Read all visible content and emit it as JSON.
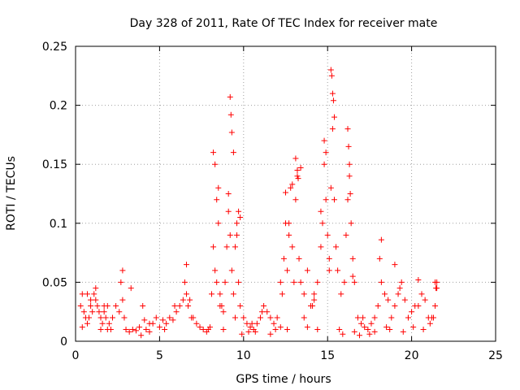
{
  "chart_data": {
    "type": "scatter",
    "title": "Day 328 of 2011, Rate Of TEC Index for receiver mate",
    "xlabel": "GPS time / hours",
    "ylabel": "ROTI / TECUs",
    "xlim": [
      0,
      25
    ],
    "ylim": [
      0,
      0.25
    ],
    "x_ticks": [
      "0",
      "5",
      "10",
      "15",
      "20",
      "25"
    ],
    "y_ticks": [
      "0",
      "0.05",
      "0.1",
      "0.15",
      "0.2",
      "0.25"
    ],
    "grid": true,
    "marker": "plus",
    "color": "#ff0000",
    "series": [
      {
        "x": [
          0.3,
          0.4,
          0.5,
          0.6,
          0.7,
          0.8,
          0.9,
          1.0,
          1.1,
          1.2,
          1.3,
          1.4,
          1.5,
          1.6,
          1.7,
          1.8,
          1.9,
          2.0,
          2.2,
          2.4,
          2.6,
          2.7,
          2.8,
          2.9,
          3.0,
          3.2,
          3.4,
          3.6,
          3.8,
          4.0,
          4.2,
          4.4,
          4.6,
          4.8,
          5.0,
          5.2,
          5.4,
          5.6,
          5.8,
          6.0,
          6.2,
          6.4,
          6.5,
          6.6,
          6.7,
          6.8,
          7.0,
          7.2,
          7.4,
          7.6,
          7.8,
          8.0,
          8.1,
          8.2,
          8.3,
          8.4,
          8.5,
          8.6,
          8.7,
          8.8,
          8.9,
          9.0,
          9.1,
          9.2,
          9.3,
          9.4,
          9.5,
          9.6,
          9.7,
          9.8,
          10.0,
          10.2,
          10.4,
          10.6,
          10.8,
          11.0,
          11.2,
          11.4,
          11.6,
          11.8,
          12.0,
          12.2,
          12.4,
          12.5,
          12.6,
          12.7,
          12.8,
          12.9,
          13.0,
          13.1,
          13.2,
          13.3,
          13.4,
          13.6,
          13.8,
          14.0,
          14.2,
          14.4,
          14.6,
          14.7,
          14.8,
          14.9,
          15.0,
          15.1,
          15.2,
          15.3,
          15.4,
          15.5,
          15.6,
          15.8,
          16.0,
          16.1,
          16.2,
          16.3,
          16.4,
          16.5,
          16.6,
          16.8,
          17.0,
          17.2,
          17.4,
          17.6,
          17.8,
          18.0,
          18.2,
          18.4,
          18.6,
          18.8,
          19.0,
          19.2,
          19.4,
          19.6,
          19.8,
          20.0,
          20.2,
          20.4,
          20.6,
          20.8,
          21.0,
          21.2,
          21.4,
          21.5,
          8.2,
          8.3,
          8.5,
          9.2,
          9.25,
          9.3,
          9.4,
          9.7,
          9.8,
          12.5,
          12.9,
          13.1,
          13.2,
          13.25,
          14.8,
          14.9,
          15.2,
          15.25,
          15.3,
          15.35,
          15.4,
          16.2,
          16.25,
          16.3,
          16.35,
          18.2,
          19.0,
          20.4,
          21.5,
          0.4,
          1.5,
          2.8,
          3.9,
          6.6,
          8.6,
          9.5,
          10.3,
          11.6,
          12.2,
          13.6,
          14.1,
          15.7,
          16.6,
          17.5,
          18.7,
          19.5,
          20.1,
          21.1,
          0.7,
          1.9,
          3.3,
          4.4,
          5.3,
          5.9,
          6.9,
          7.9,
          8.8,
          9.9,
          10.7,
          11.9,
          12.6,
          13.8,
          14.4,
          15.9,
          16.9,
          17.8,
          18.5,
          19.8,
          20.7,
          21.3,
          8.4,
          9.1,
          9.6,
          12.7,
          13.4,
          14.6,
          15.1,
          16.5,
          18.1,
          19.3,
          12.3,
          11.1,
          10.5,
          14.2,
          17.1,
          4.1,
          2.1,
          0.9,
          1.2,
          1.7,
          21.4,
          21.45
        ],
        "y": [
          0.03,
          0.04,
          0.025,
          0.02,
          0.015,
          0.02,
          0.03,
          0.025,
          0.04,
          0.035,
          0.03,
          0.025,
          0.02,
          0.015,
          0.025,
          0.02,
          0.03,
          0.015,
          0.02,
          0.03,
          0.025,
          0.05,
          0.035,
          0.02,
          0.01,
          0.008,
          0.01,
          0.009,
          0.012,
          0.03,
          0.01,
          0.008,
          0.015,
          0.02,
          0.012,
          0.018,
          0.015,
          0.02,
          0.018,
          0.025,
          0.03,
          0.035,
          0.05,
          0.04,
          0.03,
          0.035,
          0.02,
          0.015,
          0.012,
          0.01,
          0.008,
          0.012,
          0.04,
          0.08,
          0.06,
          0.05,
          0.1,
          0.04,
          0.03,
          0.025,
          0.05,
          0.08,
          0.11,
          0.09,
          0.06,
          0.04,
          0.08,
          0.1,
          0.05,
          0.03,
          0.02,
          0.015,
          0.012,
          0.01,
          0.015,
          0.02,
          0.03,
          0.025,
          0.02,
          0.015,
          0.02,
          0.05,
          0.07,
          0.1,
          0.06,
          0.09,
          0.13,
          0.08,
          0.05,
          0.12,
          0.14,
          0.07,
          0.05,
          0.04,
          0.06,
          0.03,
          0.04,
          0.05,
          0.08,
          0.1,
          0.15,
          0.12,
          0.09,
          0.07,
          0.13,
          0.18,
          0.12,
          0.08,
          0.06,
          0.04,
          0.05,
          0.09,
          0.12,
          0.15,
          0.1,
          0.07,
          0.05,
          0.02,
          0.015,
          0.012,
          0.01,
          0.015,
          0.02,
          0.03,
          0.05,
          0.04,
          0.035,
          0.02,
          0.03,
          0.04,
          0.05,
          0.035,
          0.02,
          0.025,
          0.03,
          0.03,
          0.04,
          0.035,
          0.02,
          0.02,
          0.03,
          0.05,
          0.16,
          0.15,
          0.13,
          0.207,
          0.192,
          0.177,
          0.16,
          0.11,
          0.105,
          0.126,
          0.133,
          0.155,
          0.145,
          0.138,
          0.17,
          0.16,
          0.23,
          0.225,
          0.21,
          0.204,
          0.19,
          0.18,
          0.165,
          0.14,
          0.125,
          0.086,
          0.065,
          0.052,
          0.045,
          0.012,
          0.01,
          0.06,
          0.005,
          0.065,
          0.03,
          0.02,
          0.008,
          0.006,
          0.012,
          0.02,
          0.03,
          0.01,
          0.008,
          0.006,
          0.01,
          0.008,
          0.012,
          0.015,
          0.04,
          0.01,
          0.045,
          0.015,
          0.01,
          0.03,
          0.02,
          0.01,
          0.01,
          0.006,
          0.008,
          0.01,
          0.01,
          0.012,
          0.01,
          0.006,
          0.005,
          0.008,
          0.012,
          0.02,
          0.01,
          0.02,
          0.12,
          0.125,
          0.09,
          0.1,
          0.147,
          0.11,
          0.06,
          0.055,
          0.07,
          0.045,
          0.04,
          0.025,
          0.015,
          0.035,
          0.02,
          0.018,
          0.01,
          0.035,
          0.045,
          0.03,
          0.05,
          0.045
        ]
      }
    ]
  }
}
